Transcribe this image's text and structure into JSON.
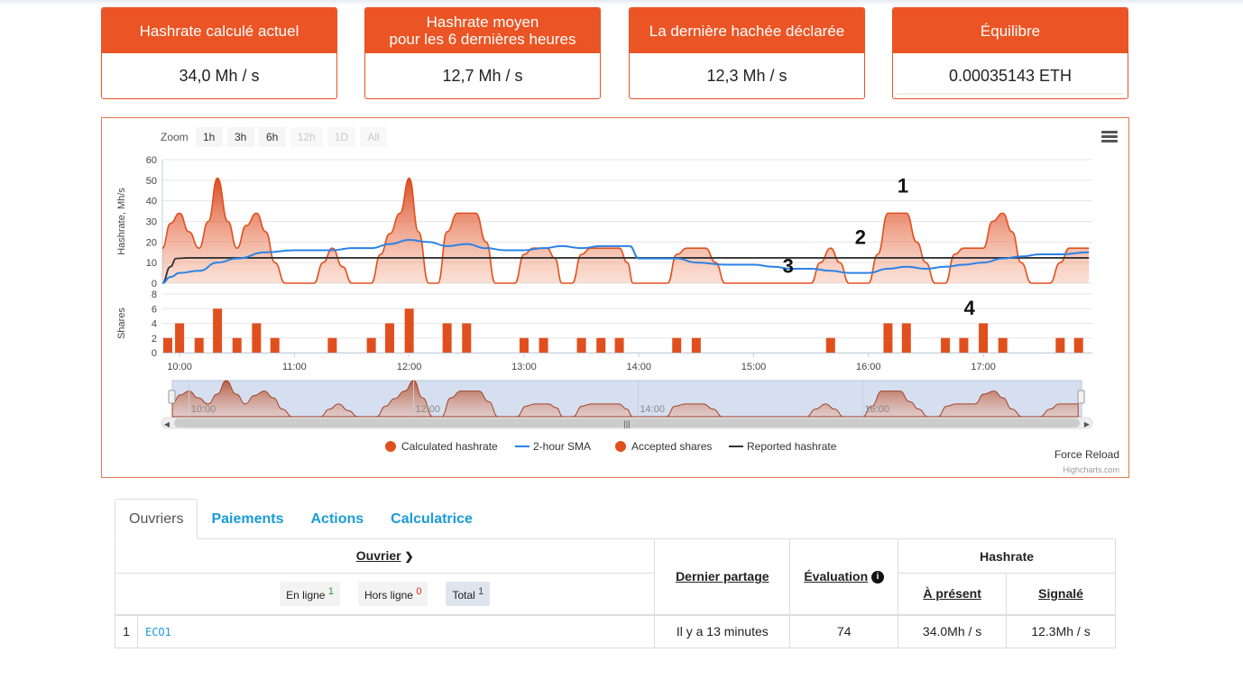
{
  "cards": [
    {
      "label": "Hashrate calculé actuel",
      "value": "34,0 Mh / s"
    },
    {
      "label": "Hashrate moyen\npour les 6 dernières heures",
      "value": "12,7 Mh / s"
    },
    {
      "label": "La dernière hachée déclarée",
      "value": "12,3 Mh / s"
    },
    {
      "label": "Équilibre",
      "value": "0.00035143 ETH"
    }
  ],
  "chart_toolbar": {
    "zoom_label": "Zoom",
    "buttons": [
      {
        "label": "1h",
        "enabled": true
      },
      {
        "label": "3h",
        "enabled": true
      },
      {
        "label": "6h",
        "enabled": true
      },
      {
        "label": "12h",
        "enabled": false
      },
      {
        "label": "1D",
        "enabled": false
      },
      {
        "label": "All",
        "enabled": false
      }
    ],
    "menu_icon": "hamburger-menu-icon"
  },
  "chart_footer": {
    "force_reload": "Force Reload",
    "credits": "Highcharts.com"
  },
  "chart_data": {
    "type": "area",
    "colors": {
      "calculated": "#e0501e",
      "sma": "#2b82e6",
      "shares": "#e0501e",
      "reported": "#333333"
    },
    "x_ticks": [
      "10:00",
      "11:00",
      "12:00",
      "13:00",
      "14:00",
      "15:00",
      "16:00",
      "17:00"
    ],
    "navigator_ticks": [
      "10:00",
      "12:00",
      "14:00",
      "16:00"
    ],
    "hashrate_axis": {
      "label": "Hashrate, Mh/s",
      "ticks": [
        0,
        10,
        20,
        30,
        40,
        50,
        60
      ],
      "ylim": [
        0,
        60
      ]
    },
    "shares_axis": {
      "label": "Shares",
      "ticks": [
        0,
        2,
        4,
        6,
        8
      ],
      "ylim": [
        0,
        8
      ]
    },
    "xlim": [
      9.85,
      17.95
    ],
    "calculated": {
      "name": "Calculated hashrate",
      "points": [
        [
          9.83,
          17
        ],
        [
          9.92,
          29
        ],
        [
          10.0,
          34
        ],
        [
          10.08,
          25
        ],
        [
          10.17,
          17
        ],
        [
          10.25,
          30
        ],
        [
          10.33,
          51
        ],
        [
          10.42,
          30
        ],
        [
          10.5,
          17
        ],
        [
          10.58,
          28
        ],
        [
          10.67,
          34
        ],
        [
          10.75,
          25
        ],
        [
          10.83,
          10
        ],
        [
          10.92,
          0
        ],
        [
          11.17,
          0
        ],
        [
          11.25,
          10
        ],
        [
          11.33,
          17
        ],
        [
          11.42,
          8
        ],
        [
          11.5,
          0
        ],
        [
          11.67,
          0
        ],
        [
          11.75,
          14
        ],
        [
          11.83,
          24
        ],
        [
          11.92,
          34
        ],
        [
          12.0,
          51
        ],
        [
          12.08,
          25
        ],
        [
          12.17,
          0
        ],
        [
          12.25,
          0
        ],
        [
          12.33,
          25
        ],
        [
          12.42,
          34
        ],
        [
          12.58,
          34
        ],
        [
          12.67,
          20
        ],
        [
          12.75,
          0
        ],
        [
          12.92,
          0
        ],
        [
          13.0,
          14
        ],
        [
          13.08,
          17
        ],
        [
          13.2,
          17
        ],
        [
          13.27,
          12
        ],
        [
          13.33,
          0
        ],
        [
          13.42,
          0
        ],
        [
          13.5,
          14
        ],
        [
          13.58,
          17
        ],
        [
          13.83,
          17
        ],
        [
          13.9,
          10
        ],
        [
          13.95,
          0
        ],
        [
          14.25,
          0
        ],
        [
          14.33,
          14
        ],
        [
          14.42,
          17
        ],
        [
          14.58,
          17
        ],
        [
          14.67,
          10
        ],
        [
          14.75,
          0
        ],
        [
          15.5,
          0
        ],
        [
          15.58,
          10
        ],
        [
          15.67,
          17
        ],
        [
          15.75,
          10
        ],
        [
          15.83,
          0
        ],
        [
          16.0,
          0
        ],
        [
          16.08,
          14
        ],
        [
          16.17,
          34
        ],
        [
          16.33,
          34
        ],
        [
          16.42,
          20
        ],
        [
          16.5,
          10
        ],
        [
          16.58,
          0
        ],
        [
          16.67,
          0
        ],
        [
          16.75,
          14
        ],
        [
          16.83,
          17
        ],
        [
          17.0,
          17
        ],
        [
          17.08,
          30
        ],
        [
          17.17,
          34
        ],
        [
          17.25,
          25
        ],
        [
          17.33,
          10
        ],
        [
          17.42,
          0
        ],
        [
          17.58,
          0
        ],
        [
          17.67,
          10
        ],
        [
          17.75,
          17
        ],
        [
          17.92,
          17
        ]
      ]
    },
    "sma": {
      "name": "2-hour SMA",
      "points": [
        [
          9.83,
          0
        ],
        [
          9.92,
          3
        ],
        [
          10.0,
          5
        ],
        [
          10.17,
          6
        ],
        [
          10.33,
          10
        ],
        [
          10.5,
          12
        ],
        [
          10.75,
          15
        ],
        [
          11.0,
          16
        ],
        [
          11.33,
          16
        ],
        [
          11.5,
          17
        ],
        [
          11.67,
          17
        ],
        [
          11.83,
          19
        ],
        [
          12.0,
          21
        ],
        [
          12.17,
          20
        ],
        [
          12.33,
          18
        ],
        [
          12.5,
          19
        ],
        [
          12.67,
          17
        ],
        [
          12.83,
          16
        ],
        [
          13.0,
          16
        ],
        [
          13.17,
          17
        ],
        [
          13.33,
          18
        ],
        [
          13.5,
          17
        ],
        [
          13.67,
          18
        ],
        [
          13.92,
          18
        ],
        [
          14.0,
          12
        ],
        [
          14.17,
          12
        ],
        [
          14.33,
          12
        ],
        [
          14.5,
          10
        ],
        [
          14.75,
          9
        ],
        [
          15.0,
          9
        ],
        [
          15.17,
          8
        ],
        [
          15.33,
          7
        ],
        [
          15.5,
          7
        ],
        [
          15.67,
          6
        ],
        [
          15.83,
          5
        ],
        [
          16.0,
          5
        ],
        [
          16.17,
          7
        ],
        [
          16.33,
          8
        ],
        [
          16.5,
          7
        ],
        [
          16.67,
          8
        ],
        [
          16.83,
          9
        ],
        [
          17.0,
          10
        ],
        [
          17.17,
          12
        ],
        [
          17.33,
          13
        ],
        [
          17.5,
          14
        ],
        [
          17.67,
          14
        ],
        [
          17.92,
          15
        ]
      ]
    },
    "reported": {
      "name": "Reported hashrate",
      "points": [
        [
          9.83,
          0
        ],
        [
          9.92,
          8
        ],
        [
          9.97,
          12
        ],
        [
          10.08,
          12.3
        ],
        [
          17.92,
          12.3
        ]
      ]
    },
    "shares": {
      "name": "Accepted shares",
      "points": [
        [
          9.83,
          2
        ],
        [
          10.0,
          4
        ],
        [
          10.17,
          2
        ],
        [
          10.33,
          6
        ],
        [
          10.5,
          2
        ],
        [
          10.67,
          4
        ],
        [
          10.83,
          2
        ],
        [
          11.33,
          2
        ],
        [
          11.67,
          2
        ],
        [
          11.83,
          4
        ],
        [
          12.0,
          6
        ],
        [
          12.33,
          4
        ],
        [
          12.5,
          4
        ],
        [
          13.0,
          2
        ],
        [
          13.17,
          2
        ],
        [
          13.5,
          2
        ],
        [
          13.67,
          2
        ],
        [
          13.83,
          2
        ],
        [
          14.33,
          2
        ],
        [
          14.5,
          2
        ],
        [
          15.67,
          2
        ],
        [
          16.17,
          4
        ],
        [
          16.33,
          4
        ],
        [
          16.67,
          2
        ],
        [
          16.83,
          2
        ],
        [
          17.0,
          4
        ],
        [
          17.17,
          2
        ],
        [
          17.67,
          2
        ],
        [
          17.83,
          2
        ]
      ]
    },
    "annotations": [
      "1",
      "2",
      "3",
      "4"
    ],
    "legend": {
      "placement": "bottom-center",
      "items": [
        "Calculated hashrate",
        "2-hour SMA",
        "Accepted shares",
        "Reported hashrate"
      ]
    }
  },
  "tabs": [
    {
      "label": "Ouvriers",
      "active": true
    },
    {
      "label": "Paiements",
      "active": false
    },
    {
      "label": "Actions",
      "active": false
    },
    {
      "label": "Calculatrice",
      "active": false
    }
  ],
  "table": {
    "headers": {
      "worker": "Ouvrier",
      "last_share": "Dernier partage",
      "rating": "Évaluation",
      "hashrate": "Hashrate",
      "current": "À présent",
      "reported": "Signalé"
    },
    "filters": {
      "online_label": "En ligne",
      "online_count": "1",
      "offline_label": "Hors ligne",
      "offline_count": "0",
      "total_label": "Total",
      "total_count": "1"
    },
    "rows": [
      {
        "index": "1",
        "worker": "ECO1",
        "last_share": "Il y a 13 minutes",
        "rating": "74",
        "current": "34.0Mh / s",
        "reported": "12.3Mh / s"
      }
    ]
  }
}
